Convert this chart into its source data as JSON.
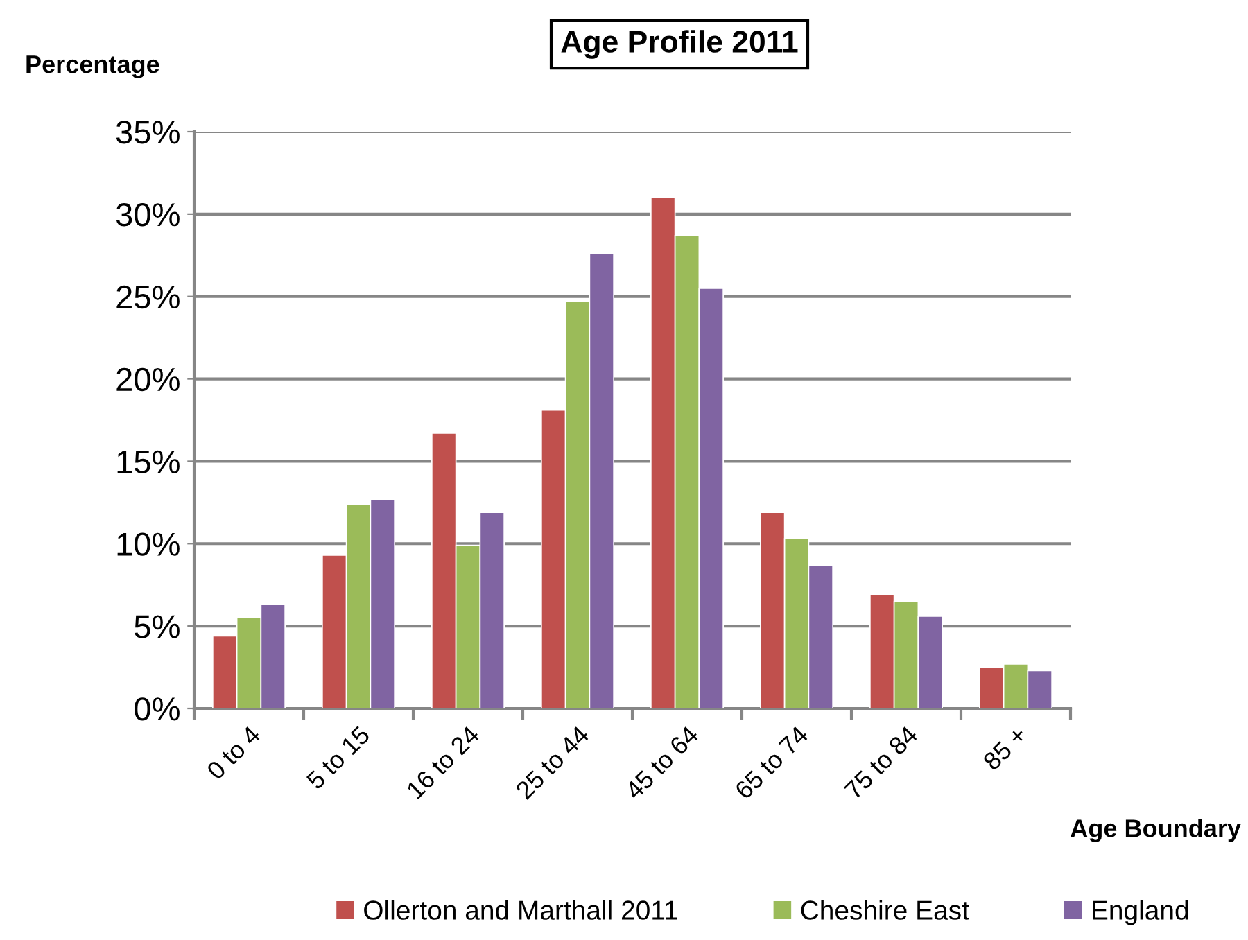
{
  "chart_data": {
    "type": "bar",
    "title": "Age Profile 2011",
    "ylabel": "Percentage",
    "xlabel": "Age Boundary",
    "categories": [
      "0 to 4",
      "5 to 15",
      "16 to 24",
      "25 to 44",
      "45 to 64",
      "65 to 74",
      "75 to 84",
      "85 +"
    ],
    "series": [
      {
        "name": "Ollerton and Marthall 2011",
        "color": "#c0504d",
        "values": [
          4.4,
          9.3,
          16.7,
          18.1,
          31.0,
          11.9,
          6.9,
          2.5
        ]
      },
      {
        "name": "Cheshire East",
        "color": "#9bbb59",
        "values": [
          5.5,
          12.4,
          9.9,
          24.7,
          28.7,
          10.3,
          6.5,
          2.7
        ]
      },
      {
        "name": "England",
        "color": "#8064a2",
        "values": [
          6.3,
          12.7,
          11.9,
          27.6,
          25.5,
          8.7,
          5.6,
          2.3
        ]
      }
    ],
    "ylim": [
      0,
      35
    ],
    "yticks": [
      {
        "value": 0,
        "label": "0%"
      },
      {
        "value": 5,
        "label": "5%"
      },
      {
        "value": 10,
        "label": "10%"
      },
      {
        "value": 15,
        "label": "15%"
      },
      {
        "value": 20,
        "label": "20%"
      },
      {
        "value": 25,
        "label": "25%"
      },
      {
        "value": 30,
        "label": "30%"
      },
      {
        "value": 35,
        "label": "35%"
      }
    ],
    "grid": "y",
    "legend": "bottom"
  }
}
